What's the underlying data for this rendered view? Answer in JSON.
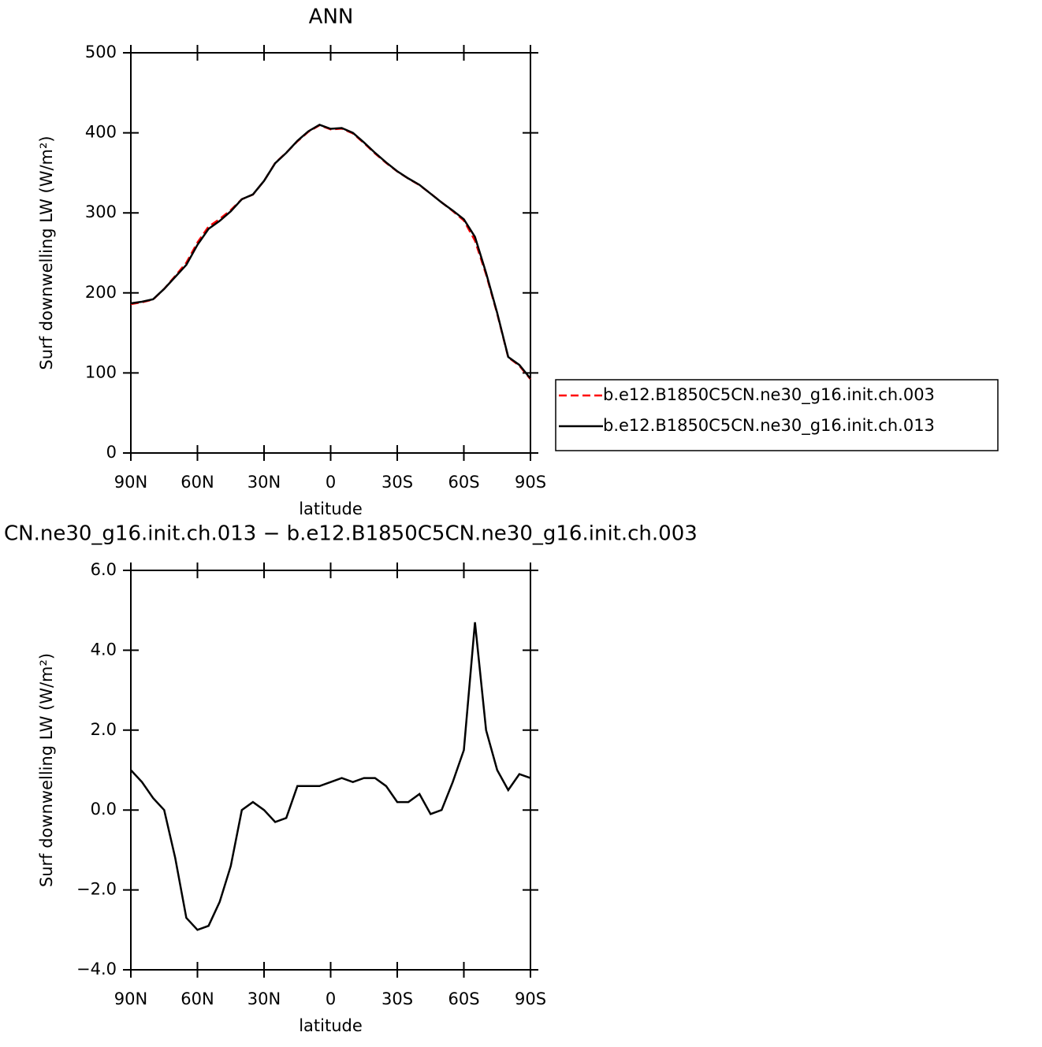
{
  "chart_data": [
    {
      "type": "line",
      "title": "ANN",
      "xlabel": "latitude",
      "ylabel": "Surf  downwelling LW (W/m²)",
      "x": [
        90,
        85,
        80,
        75,
        70,
        65,
        60,
        55,
        50,
        45,
        40,
        35,
        30,
        25,
        20,
        15,
        10,
        5,
        0,
        -5,
        -10,
        -15,
        -20,
        -25,
        -30,
        -35,
        -40,
        -45,
        -50,
        -55,
        -60,
        -65,
        -70,
        -75,
        -80,
        -85,
        -90
      ],
      "series": [
        {
          "name": "b.e12.B1850C5CN.ne30_g16.init.ch.003",
          "color": "#ff0000",
          "line_style": "dashed",
          "values": [
            186,
            188.3,
            191.7,
            205,
            221.2,
            237.7,
            263,
            282.9,
            292.3,
            303.4,
            317,
            322.8,
            340,
            362.3,
            375.2,
            389.4,
            401.4,
            409.4,
            404.3,
            405.2,
            399.3,
            387.2,
            374.2,
            362.4,
            351.8,
            342.8,
            334.6,
            324.1,
            313.1,
            302.3,
            290.5,
            265.3,
            223,
            174,
            119.5,
            109.1,
            92.2
          ]
        },
        {
          "name": "b.e12.B1850C5CN.ne30_g16.init.ch.013",
          "color": "#000000",
          "line_style": "solid",
          "values": [
            187,
            189,
            192,
            205,
            220,
            235,
            260,
            280,
            290,
            302,
            317,
            323,
            340,
            362,
            375,
            390,
            402,
            410,
            405,
            406,
            400,
            388,
            375,
            363,
            352,
            343,
            335,
            324,
            313,
            303,
            292,
            270,
            225,
            175,
            120,
            110,
            93
          ]
        }
      ],
      "xlim": [
        90,
        -90
      ],
      "xticks": [
        {
          "value": 90,
          "label": "90N"
        },
        {
          "value": 60,
          "label": "60N"
        },
        {
          "value": 30,
          "label": "30N"
        },
        0,
        {
          "value": -30,
          "label": "30S"
        },
        {
          "value": -60,
          "label": "60S"
        },
        {
          "value": -90,
          "label": "90S"
        }
      ],
      "ylim": [
        0,
        500
      ],
      "yticks": [
        0,
        100,
        200,
        300,
        400,
        500
      ],
      "grid": false,
      "legend": "right"
    },
    {
      "type": "line",
      "title": "CN.ne30_g16.init.ch.013 − b.e12.B1850C5CN.ne30_g16.init.ch.003",
      "xlabel": "latitude",
      "ylabel": "Surf  downwelling LW (W/m²)",
      "x": [
        90,
        85,
        80,
        75,
        70,
        65,
        60,
        55,
        50,
        45,
        40,
        35,
        30,
        25,
        20,
        15,
        10,
        5,
        0,
        -5,
        -10,
        -15,
        -20,
        -25,
        -30,
        -35,
        -40,
        -45,
        -50,
        -55,
        -60,
        -65,
        -70,
        -75,
        -80,
        -85,
        -90
      ],
      "series": [
        {
          "color": "#000000",
          "line_style": "solid",
          "values": [
            1.0,
            0.7,
            0.3,
            0.0,
            -1.2,
            -2.7,
            -3.0,
            -2.9,
            -2.3,
            -1.4,
            0.0,
            0.2,
            0.0,
            -0.3,
            -0.2,
            0.6,
            0.6,
            0.6,
            0.7,
            0.8,
            0.7,
            0.8,
            0.8,
            0.6,
            0.2,
            0.2,
            0.4,
            -0.1,
            0.0,
            0.7,
            1.5,
            4.7,
            2.0,
            1.0,
            0.5,
            0.9,
            0.8
          ]
        }
      ],
      "xlim": [
        90,
        -90
      ],
      "xticks": [
        {
          "value": 90,
          "label": "90N"
        },
        {
          "value": 60,
          "label": "60N"
        },
        {
          "value": 30,
          "label": "30N"
        },
        0,
        {
          "value": -30,
          "label": "30S"
        },
        {
          "value": -60,
          "label": "60S"
        },
        {
          "value": -90,
          "label": "90S"
        }
      ],
      "ylim": [
        -4,
        6
      ],
      "yticks": [
        {
          "value": -4,
          "label": "−4.0"
        },
        {
          "value": -2,
          "label": "−2.0"
        },
        {
          "value": 0,
          "label": "0.0"
        },
        {
          "value": 2,
          "label": "2.0"
        },
        {
          "value": 4,
          "label": "4.0"
        },
        {
          "value": 6,
          "label": "6.0"
        }
      ],
      "grid": false
    }
  ]
}
